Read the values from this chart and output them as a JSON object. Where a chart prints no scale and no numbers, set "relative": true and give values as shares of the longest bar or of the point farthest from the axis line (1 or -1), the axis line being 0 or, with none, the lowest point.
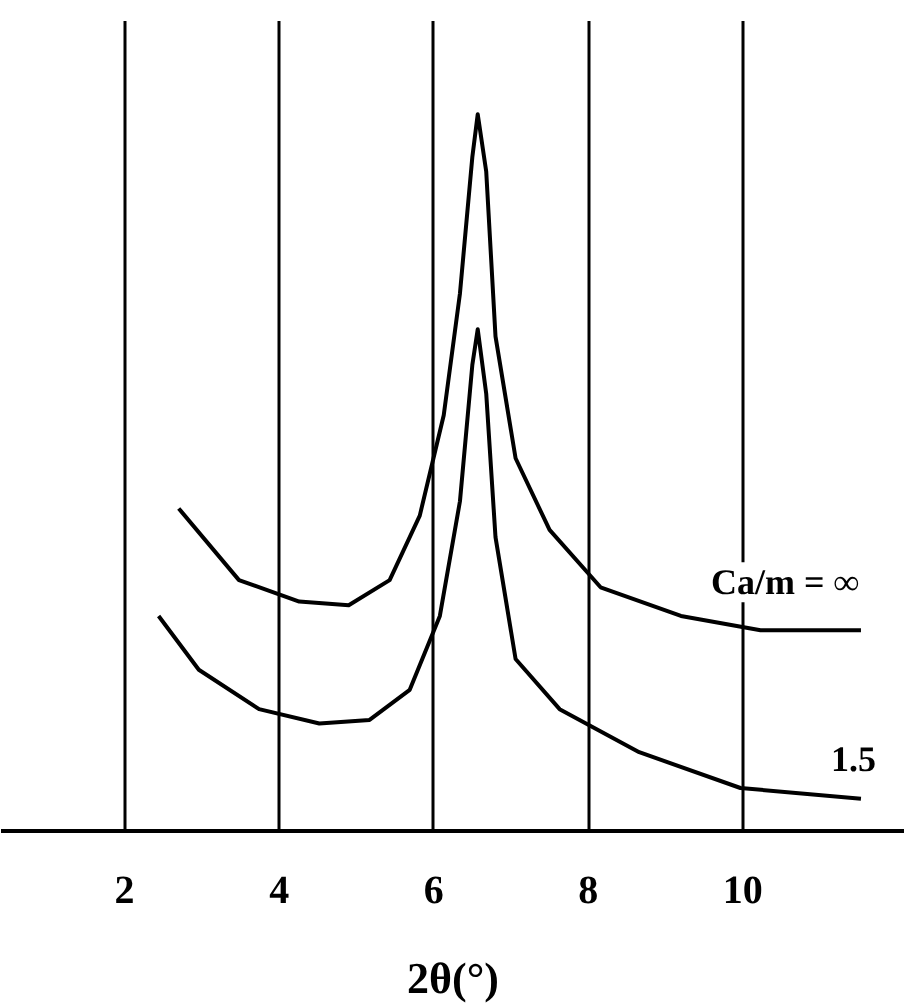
{
  "chart_data": {
    "type": "line",
    "relative": true,
    "xlabel": "2θ(°)",
    "xlim": [
      0.4,
      12.1
    ],
    "xticks": [
      2,
      4,
      6,
      8,
      10
    ],
    "grid": "x",
    "marker": "none",
    "line_style": "solid",
    "series": [
      {
        "name": "Ca/m = ∞",
        "color": "#000000",
        "x": [
          2.7,
          3.48,
          4.26,
          4.9,
          5.43,
          5.82,
          6.13,
          6.34,
          6.5,
          6.57,
          6.68,
          6.8,
          7.06,
          7.5,
          8.16,
          9.2,
          10.23,
          11.53
        ],
        "values": [
          0.45,
          0.35,
          0.32,
          0.315,
          0.35,
          0.44,
          0.58,
          0.75,
          0.94,
          1,
          0.92,
          0.69,
          0.52,
          0.42,
          0.34,
          0.3,
          0.28,
          0.28
        ]
      },
      {
        "name": "1.5",
        "color": "#000000",
        "x": [
          2.44,
          2.96,
          3.74,
          4.52,
          5.17,
          5.69,
          6.08,
          6.34,
          6.5,
          6.57,
          6.68,
          6.8,
          7.06,
          7.63,
          8.66,
          9.97,
          11.53
        ],
        "values": [
          0.3,
          0.225,
          0.17,
          0.15,
          0.155,
          0.197,
          0.3,
          0.46,
          0.65,
          0.7,
          0.61,
          0.41,
          0.24,
          0.17,
          0.11,
          0.06,
          0.045
        ]
      }
    ]
  }
}
